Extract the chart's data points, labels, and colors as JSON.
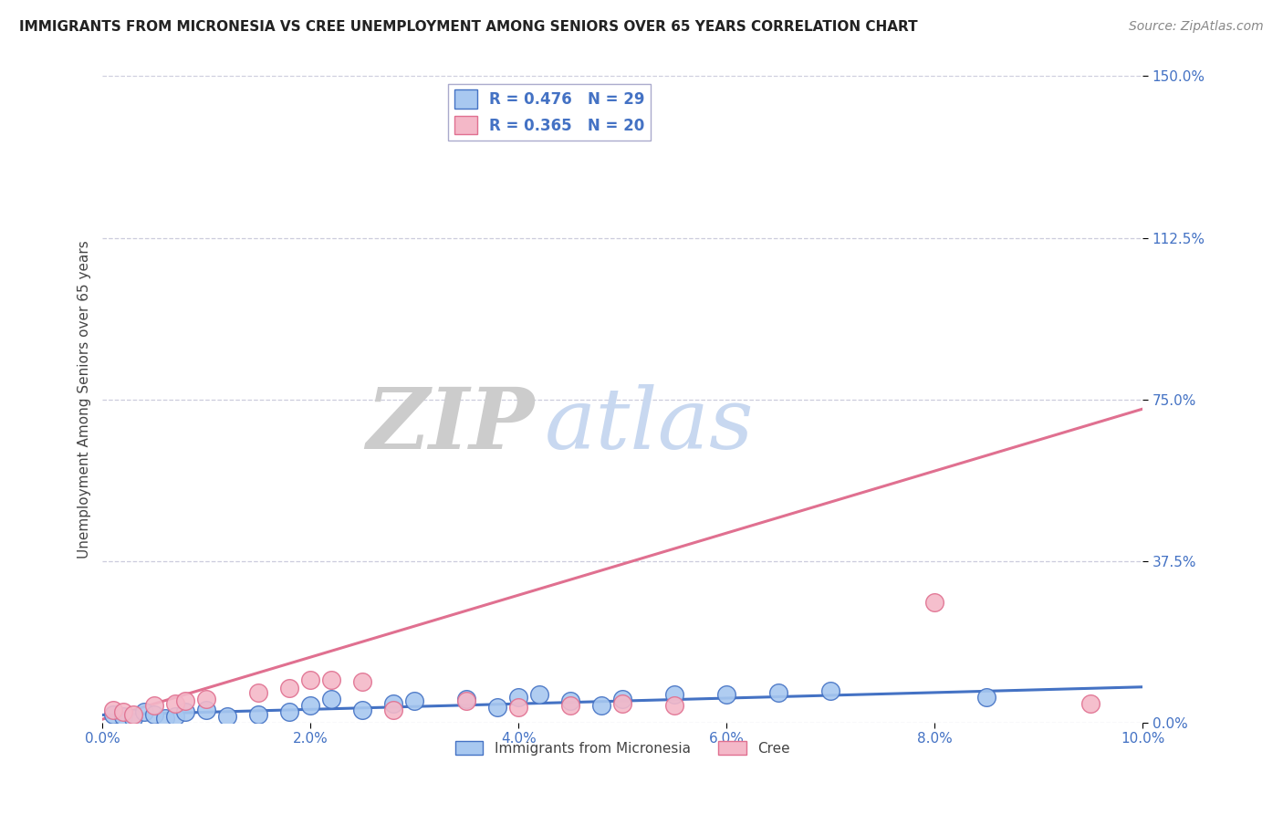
{
  "title": "IMMIGRANTS FROM MICRONESIA VS CREE UNEMPLOYMENT AMONG SENIORS OVER 65 YEARS CORRELATION CHART",
  "source": "Source: ZipAtlas.com",
  "ylabel": "Unemployment Among Seniors over 65 years",
  "xlim": [
    0.0,
    0.1
  ],
  "ylim": [
    0.0,
    1.5
  ],
  "yticks": [
    0.0,
    0.375,
    0.75,
    1.125,
    1.5
  ],
  "ytick_labels": [
    "0.0%",
    "37.5%",
    "75.0%",
    "112.5%",
    "150.0%"
  ],
  "xticks": [
    0.0,
    0.02,
    0.04,
    0.06,
    0.08,
    0.1
  ],
  "xtick_labels": [
    "0.0%",
    "2.0%",
    "4.0%",
    "6.0%",
    "8.0%",
    "10.0%"
  ],
  "series": [
    {
      "name": "Immigrants from Micronesia",
      "color": "#a8c8f0",
      "edge_color": "#4472c4",
      "R": 0.476,
      "N": 29,
      "x": [
        0.001,
        0.002,
        0.003,
        0.004,
        0.005,
        0.006,
        0.007,
        0.008,
        0.01,
        0.012,
        0.015,
        0.018,
        0.02,
        0.022,
        0.025,
        0.028,
        0.03,
        0.035,
        0.038,
        0.04,
        0.042,
        0.045,
        0.048,
        0.05,
        0.055,
        0.06,
        0.065,
        0.07,
        0.085
      ],
      "y": [
        0.02,
        0.015,
        0.01,
        0.025,
        0.02,
        0.01,
        0.015,
        0.025,
        0.03,
        0.015,
        0.02,
        0.025,
        0.04,
        0.055,
        0.03,
        0.045,
        0.05,
        0.055,
        0.035,
        0.06,
        0.065,
        0.05,
        0.04,
        0.055,
        0.065,
        0.065,
        0.07,
        0.075,
        0.06
      ],
      "line_color": "#4472c4",
      "line_slope": 0.65,
      "line_intercept": 0.018
    },
    {
      "name": "Cree",
      "color": "#f4b8c8",
      "edge_color": "#e07090",
      "R": 0.365,
      "N": 20,
      "x": [
        0.001,
        0.002,
        0.003,
        0.005,
        0.007,
        0.008,
        0.01,
        0.015,
        0.018,
        0.02,
        0.022,
        0.025,
        0.028,
        0.035,
        0.04,
        0.045,
        0.05,
        0.055,
        0.08,
        0.095
      ],
      "y": [
        0.03,
        0.025,
        0.02,
        0.04,
        0.045,
        0.05,
        0.055,
        0.07,
        0.08,
        0.1,
        0.1,
        0.095,
        0.03,
        0.05,
        0.035,
        0.04,
        0.045,
        0.04,
        0.28,
        0.045
      ],
      "line_color": "#e07090",
      "line_slope": 7.2,
      "line_intercept": 0.008
    }
  ],
  "background_color": "#ffffff",
  "grid_color": "#ccccdd",
  "title_color": "#222222",
  "axis_label_color": "#4472c4",
  "watermark_zip": "ZIP",
  "watermark_atlas": "atlas",
  "watermark_zip_color": "#cccccc",
  "watermark_atlas_color": "#c8d8f0"
}
